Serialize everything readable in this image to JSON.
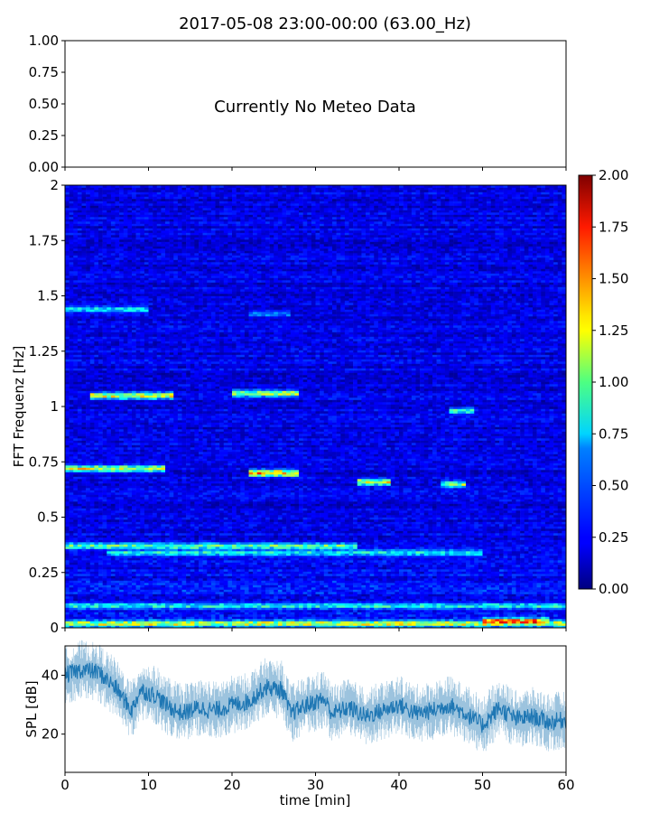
{
  "figure": {
    "title": "2017-05-08 23:00-00:00 (63.00_Hz)"
  },
  "chart_data": [
    {
      "type": "line",
      "panel": "meteo",
      "message": "Currently No Meteo Data",
      "ylim": [
        0.0,
        1.0
      ],
      "y_ticks": [
        "0.00",
        "0.25",
        "0.50",
        "0.75",
        "1.00"
      ],
      "xlim": [
        0,
        60
      ],
      "series": []
    },
    {
      "type": "heatmap",
      "panel": "spectrogram",
      "ylabel": "FFT Frequenz [Hz]",
      "xlim": [
        0,
        60
      ],
      "ylim": [
        0,
        2
      ],
      "y_ticks": [
        "0",
        "0.25",
        "0.5",
        "0.75",
        "1",
        "1.25",
        "1.5",
        "1.75",
        "2"
      ],
      "colormap": "jet",
      "colorbar": {
        "range": [
          0.0,
          2.0
        ],
        "ticks": [
          "0.00",
          "0.25",
          "0.50",
          "0.75",
          "1.00",
          "1.25",
          "1.50",
          "1.75",
          "2.00"
        ]
      },
      "background_level": 0.2,
      "ridges": [
        {
          "freq": 0.37,
          "t_start": 0,
          "t_end": 35,
          "value": 1.2
        },
        {
          "freq": 0.34,
          "t_start": 5,
          "t_end": 50,
          "value": 1.0
        },
        {
          "freq": 0.72,
          "t_start": 0,
          "t_end": 12,
          "value": 1.5
        },
        {
          "freq": 0.7,
          "t_start": 22,
          "t_end": 28,
          "value": 1.8
        },
        {
          "freq": 0.66,
          "t_start": 35,
          "t_end": 39,
          "value": 1.5
        },
        {
          "freq": 0.65,
          "t_start": 45,
          "t_end": 48,
          "value": 1.3
        },
        {
          "freq": 1.05,
          "t_start": 3,
          "t_end": 13,
          "value": 1.5
        },
        {
          "freq": 1.06,
          "t_start": 20,
          "t_end": 28,
          "value": 1.4
        },
        {
          "freq": 0.98,
          "t_start": 46,
          "t_end": 49,
          "value": 1.1
        },
        {
          "freq": 1.44,
          "t_start": 0,
          "t_end": 10,
          "value": 0.9
        },
        {
          "freq": 1.42,
          "t_start": 22,
          "t_end": 27,
          "value": 0.7
        },
        {
          "freq": 0.1,
          "t_start": 0,
          "t_end": 60,
          "value": 1.0
        },
        {
          "freq": 0.02,
          "t_start": 0,
          "t_end": 60,
          "value": 1.5
        },
        {
          "freq": 0.03,
          "t_start": 50,
          "t_end": 58,
          "value": 2.0
        }
      ]
    },
    {
      "type": "line",
      "panel": "spl",
      "ylabel": "SPL [dB]",
      "xlabel": "time [min]",
      "xlim": [
        0,
        60
      ],
      "ylim": [
        7,
        50
      ],
      "y_ticks": [
        20,
        40
      ],
      "x_ticks": [
        0,
        10,
        20,
        30,
        40,
        50,
        60
      ],
      "color": "#1f77b4",
      "series": [
        {
          "x": [
            0,
            2,
            4,
            6,
            8,
            9,
            11,
            12,
            14,
            16,
            18,
            20,
            22,
            24,
            26,
            27,
            29,
            31,
            32,
            34,
            36,
            38,
            40,
            42,
            44,
            46,
            48,
            50,
            52,
            54,
            56,
            58,
            60
          ],
          "y": [
            40,
            42,
            41,
            36,
            28,
            35,
            33,
            30,
            27,
            29,
            28,
            30,
            31,
            36,
            35,
            27,
            30,
            32,
            27,
            29,
            26,
            28,
            30,
            27,
            28,
            30,
            27,
            23,
            29,
            25,
            26,
            24,
            25
          ]
        }
      ]
    }
  ]
}
